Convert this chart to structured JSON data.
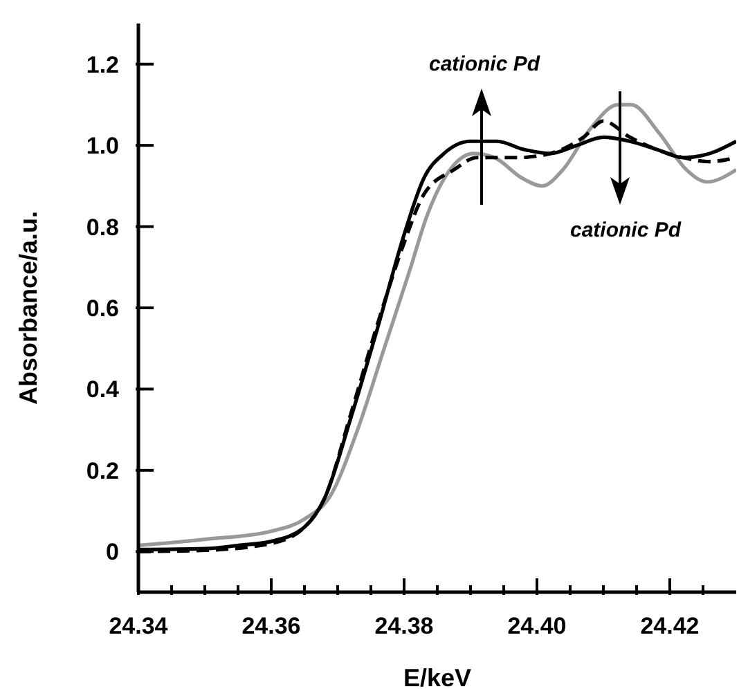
{
  "chart_data": {
    "type": "line",
    "xlabel": "E/keV",
    "ylabel": "Absorbance/a.u.",
    "xlim": [
      24.34,
      24.43
    ],
    "ylim": [
      -0.1,
      1.3
    ],
    "xticks": [
      24.34,
      {
        "value": 24.345,
        "label": null
      },
      {
        "value": 24.35,
        "label": null
      },
      {
        "value": 24.355,
        "label": null
      },
      24.36,
      {
        "value": 24.365,
        "label": null
      },
      {
        "value": 24.37,
        "label": null
      },
      {
        "value": 24.375,
        "label": null
      },
      24.38,
      {
        "value": 24.385,
        "label": null
      },
      {
        "value": 24.39,
        "label": null
      },
      {
        "value": 24.395,
        "label": null
      },
      {
        "value": 24.4,
        "label": "24.40"
      },
      {
        "value": 24.405,
        "label": null
      },
      {
        "value": 24.41,
        "label": null
      },
      {
        "value": 24.415,
        "label": null
      },
      24.42,
      {
        "value": 24.425,
        "label": null
      }
    ],
    "yticks": [
      0,
      0.2,
      0.4,
      0.6,
      0.8,
      {
        "value": 1,
        "label": "1.0"
      },
      1.2
    ],
    "marker": "none",
    "series": [
      {
        "color": "#999999",
        "line_style": "solid",
        "x": [
          24.34,
          24.35,
          24.36,
          24.365,
          24.369,
          24.373,
          24.377,
          24.381,
          24.3833,
          24.3874,
          24.3905,
          24.3936,
          24.3977,
          24.4008,
          24.4039,
          24.408,
          24.4122,
          24.4142,
          24.4184,
          24.4225,
          24.4256,
          24.43
        ],
        "values": [
          0.015,
          0.03,
          0.05,
          0.08,
          0.14,
          0.3,
          0.5,
          0.7,
          0.82,
          0.95,
          0.98,
          0.97,
          0.92,
          0.9,
          0.94,
          1.04,
          1.1,
          1.1,
          1.03,
          0.94,
          0.91,
          0.94
        ]
      },
      {
        "color": "#000000",
        "line_style": "dashed",
        "x": [
          24.34,
          24.35,
          24.36,
          24.365,
          24.368,
          24.372,
          24.376,
          24.38,
          24.383,
          24.3875,
          24.391,
          24.397,
          24.402,
          24.407,
          24.41,
          24.414,
          24.418,
          24.422,
          24.426,
          24.43
        ],
        "values": [
          0.0,
          0.003,
          0.02,
          0.06,
          0.13,
          0.34,
          0.56,
          0.76,
          0.88,
          0.94,
          0.97,
          0.97,
          0.98,
          1.02,
          1.06,
          1.02,
          0.99,
          0.97,
          0.96,
          0.97
        ]
      },
      {
        "color": "#000000",
        "line_style": "solid",
        "x": [
          24.34,
          24.35,
          24.355,
          24.36,
          24.365,
          24.368,
          24.372,
          24.376,
          24.38,
          24.383,
          24.386,
          24.39,
          24.394,
          24.398,
          24.402,
          24.406,
          24.41,
          24.414,
          24.418,
          24.422,
          24.426,
          24.43
        ],
        "values": [
          0.005,
          0.007,
          0.015,
          0.025,
          0.06,
          0.13,
          0.33,
          0.55,
          0.78,
          0.92,
          0.98,
          1.01,
          1.01,
          0.99,
          0.98,
          1.0,
          1.02,
          1.01,
          0.99,
          0.97,
          0.98,
          1.01
        ]
      }
    ],
    "annotations": [
      "cationic Pd",
      "cationic Pd"
    ]
  }
}
